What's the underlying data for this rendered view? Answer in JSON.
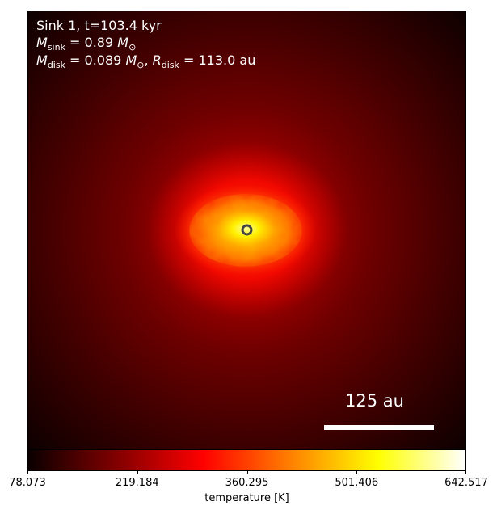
{
  "chart_data": {
    "type": "heatmap",
    "title": "",
    "annotations": {
      "line1": "Sink 1, t=103.4 kyr",
      "line2": {
        "symbol": "M",
        "subscript": "sink",
        "value": "= 0.89",
        "unit_symbol": "M",
        "unit_subscript": "⊙"
      },
      "line3": {
        "symbol1": "M",
        "subscript1": "disk",
        "value1": "= 0.089",
        "unit_symbol": "M",
        "unit_subscript": "⊙",
        "separator": ", ",
        "symbol2": "R",
        "subscript2": "disk",
        "value2": "= 113.0 au"
      }
    },
    "scale_bar": {
      "label": "125 au",
      "length_au": 125
    },
    "sink": {
      "x_frac": 0.5,
      "y_frac": 0.5,
      "marker": "open-circle"
    },
    "colorbar": {
      "label": "temperature [K]",
      "min": 78.073,
      "max": 642.517,
      "ticks": [
        78.073,
        219.184,
        360.295,
        501.406,
        642.517
      ],
      "tick_labels": [
        "78.073",
        "219.184",
        "360.295",
        "501.406",
        "642.517"
      ],
      "colormap": "hot",
      "colors": [
        "#0a0000",
        "#800000",
        "#ff0000",
        "#ff8000",
        "#ffff00",
        "#ffffff"
      ]
    }
  }
}
